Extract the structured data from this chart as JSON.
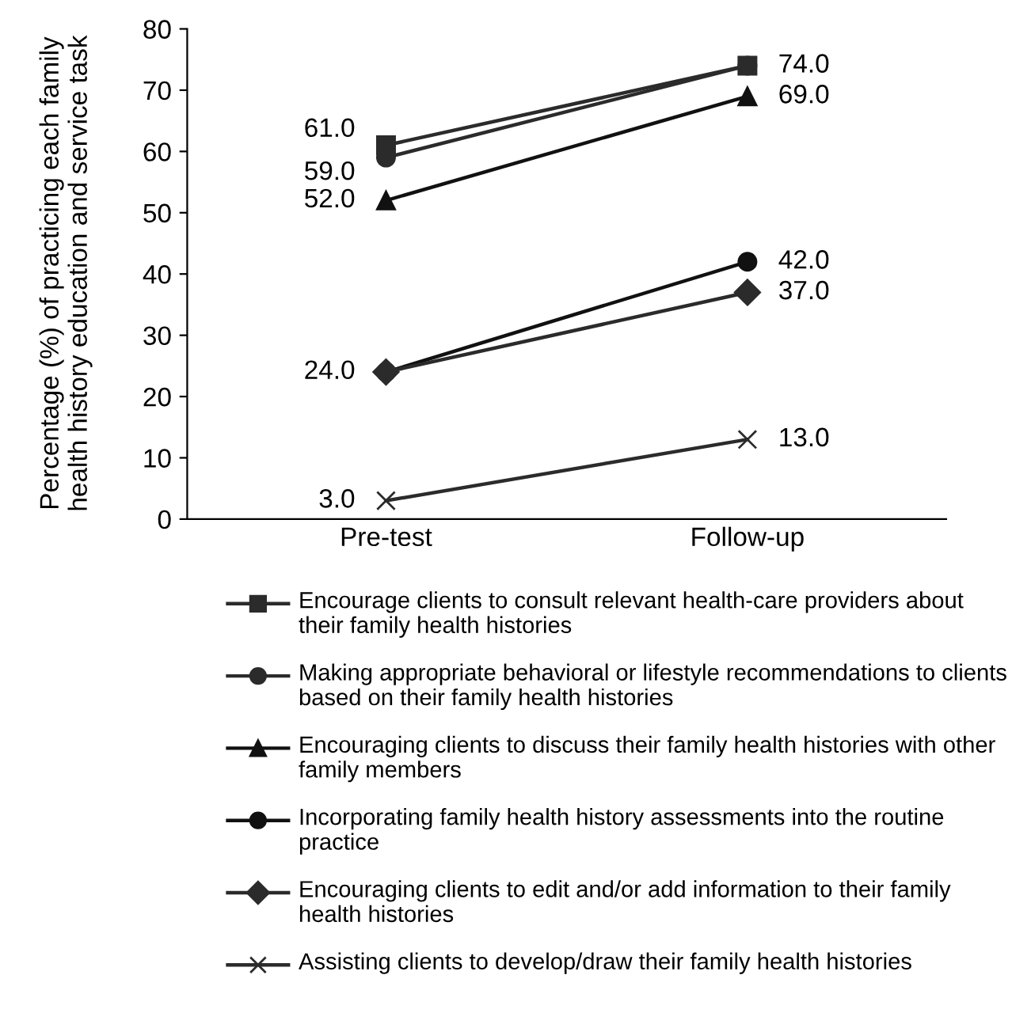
{
  "chart_data": {
    "type": "line",
    "ylabel": "Percentage (%) of practicing each family health history education and service task",
    "categories": [
      "Pre-test",
      "Follow-up"
    ],
    "ylim": [
      0,
      80
    ],
    "yticks": [
      0,
      10,
      20,
      30,
      40,
      50,
      60,
      70,
      80
    ],
    "grid": false,
    "legend": "bottom",
    "line_style": "solid",
    "series": [
      {
        "name": "Encourage clients to consult relevant health-care providers about their family health histories",
        "color": "#2b2b2b",
        "marker": "square",
        "values": [
          61,
          74
        ],
        "value_labels": [
          "61.0",
          "74.0"
        ]
      },
      {
        "name": "Making appropriate behavioral or lifestyle recommendations to clients based on their family health histories",
        "color": "#2b2b2b",
        "marker": "circle",
        "values": [
          59,
          74
        ],
        "value_labels": [
          "59.0",
          null
        ]
      },
      {
        "name": "Encouraging clients to discuss their family health histories with other family members",
        "color": "#111111",
        "marker": "triangle",
        "values": [
          52,
          69
        ],
        "value_labels": [
          "52.0",
          "69.0"
        ]
      },
      {
        "name": "Incorporating family health history assessments into the routine practice",
        "color": "#111111",
        "marker": "circle",
        "values": [
          24,
          42
        ],
        "value_labels": [
          null,
          "42.0"
        ]
      },
      {
        "name": "Encouraging clients to edit and/or add information to their family health histories",
        "color": "#2b2b2b",
        "marker": "diamond",
        "values": [
          24,
          37
        ],
        "value_labels": [
          "24.0",
          "37.0"
        ]
      },
      {
        "name": "Assisting clients to develop/draw their family health histories",
        "color": "#2b2b2b",
        "marker": "cross",
        "values": [
          3,
          13
        ],
        "value_labels": [
          "3.0",
          "13.0"
        ]
      }
    ]
  }
}
